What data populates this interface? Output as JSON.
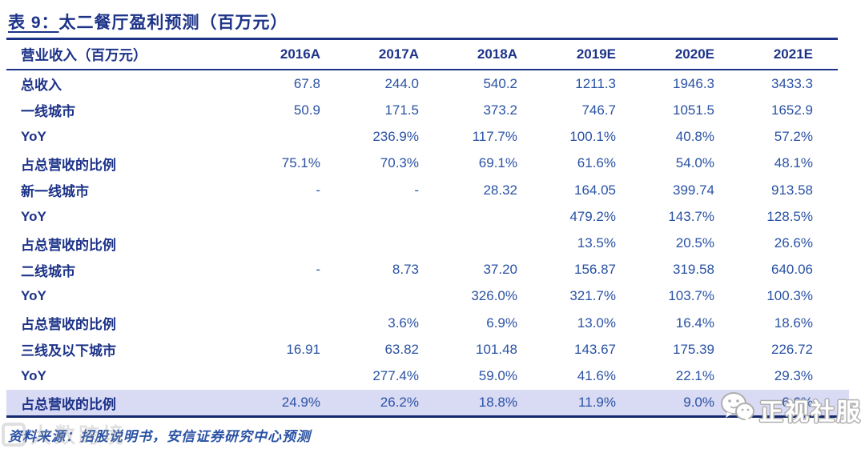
{
  "title": {
    "prefix": "表 9：",
    "text": "太二餐厅盈利预测（百万元）"
  },
  "table": {
    "header": [
      "营业收入（百万元）",
      "2016A",
      "2017A",
      "2018A",
      "2019E",
      "2020E",
      "2021E"
    ],
    "rows": [
      {
        "label": "总收入",
        "values": [
          "67.8",
          "244.0",
          "540.2",
          "1211.3",
          "1946.3",
          "3433.3"
        ],
        "highlight": false
      },
      {
        "label": "一线城市",
        "values": [
          "50.9",
          "171.5",
          "373.2",
          "746.7",
          "1051.5",
          "1652.9"
        ],
        "highlight": false
      },
      {
        "label": "YoY",
        "values": [
          "",
          "236.9%",
          "117.7%",
          "100.1%",
          "40.8%",
          "57.2%"
        ],
        "highlight": false
      },
      {
        "label": "占总营收的比例",
        "values": [
          "75.1%",
          "70.3%",
          "69.1%",
          "61.6%",
          "54.0%",
          "48.1%"
        ],
        "highlight": false
      },
      {
        "label": "新一线城市",
        "values": [
          "-",
          "-",
          "28.32",
          "164.05",
          "399.74",
          "913.58"
        ],
        "highlight": false
      },
      {
        "label": "YoY",
        "values": [
          "",
          "",
          "",
          "479.2%",
          "143.7%",
          "128.5%"
        ],
        "highlight": false
      },
      {
        "label": "占总营收的比例",
        "values": [
          "",
          "",
          "",
          "13.5%",
          "20.5%",
          "26.6%"
        ],
        "highlight": false
      },
      {
        "label": "二线城市",
        "values": [
          "-",
          "8.73",
          "37.20",
          "156.87",
          "319.58",
          "640.06"
        ],
        "highlight": false
      },
      {
        "label": "YoY",
        "values": [
          "",
          "",
          "326.0%",
          "321.7%",
          "103.7%",
          "100.3%"
        ],
        "highlight": false
      },
      {
        "label": "占总营收的比例",
        "values": [
          "",
          "3.6%",
          "6.9%",
          "13.0%",
          "16.4%",
          "18.6%"
        ],
        "highlight": false
      },
      {
        "label": "三线及以下城市",
        "values": [
          "16.91",
          "63.82",
          "101.48",
          "143.67",
          "175.39",
          "226.72"
        ],
        "highlight": false
      },
      {
        "label": "YoY",
        "values": [
          "",
          "277.4%",
          "59.0%",
          "41.6%",
          "22.1%",
          "29.3%"
        ],
        "highlight": false
      },
      {
        "label": "占总营收的比例",
        "values": [
          "24.9%",
          "26.2%",
          "18.8%",
          "11.9%",
          "9.0%",
          "6.6%"
        ],
        "highlight": true
      }
    ]
  },
  "footer": {
    "source": "资料来源：招股说明书，安信证券研究中心预测"
  },
  "watermarks": {
    "bottom_left_text": "大数跨境",
    "bottom_right_text": "正视社服"
  },
  "colors": {
    "title_navy": "#1d3388",
    "number_blue": "#2a52a4",
    "rule_navy": "#14296b",
    "highlight_bg": "#d9daf4"
  }
}
